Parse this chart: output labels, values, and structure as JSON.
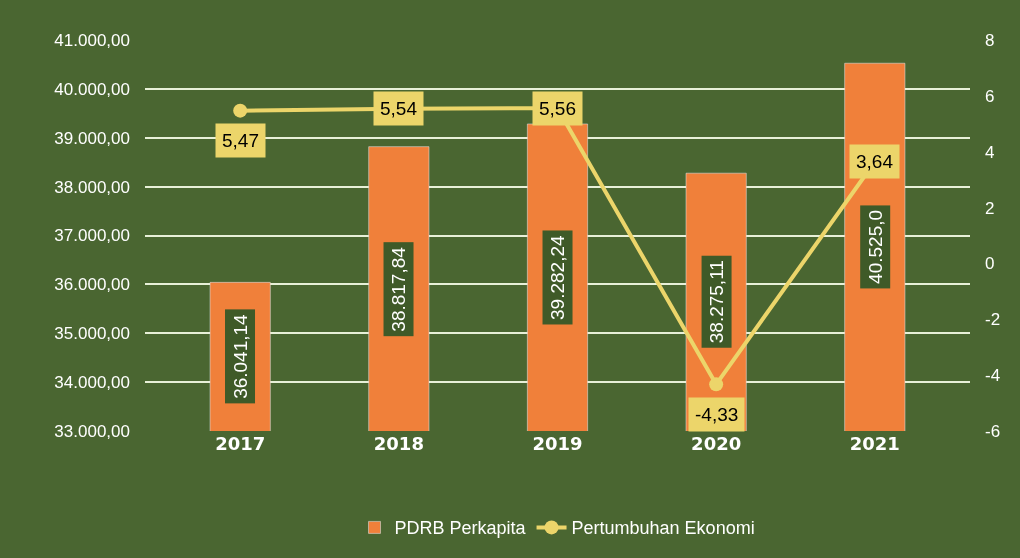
{
  "chart_data": {
    "type": "bar",
    "categories": [
      "2017",
      "2018",
      "2019",
      "2020",
      "2021"
    ],
    "series": [
      {
        "name": "PDRB Perkapita",
        "color": "#f0803a",
        "values": [
          36041.14,
          38817.84,
          39282.24,
          38275.11,
          40525.0
        ],
        "value_labels": [
          "36.041,14",
          "38.817,84",
          "39.282,24",
          "38.275,11",
          "40.525,0"
        ]
      },
      {
        "name": "Pertumbuhan Ekonomi",
        "type": "line",
        "axis": "y2",
        "color": "#ecd56a",
        "values": [
          5.47,
          5.54,
          5.56,
          -4.33,
          3.64
        ],
        "value_labels": [
          "5,47",
          "5,54",
          "5,56",
          "-4,33",
          "3,64"
        ]
      }
    ],
    "ylim": [
      33000,
      41000
    ],
    "yticks": [
      {
        "value": 33000,
        "label": "33.000,00"
      },
      {
        "value": 34000,
        "label": "34.000,00"
      },
      {
        "value": 35000,
        "label": "35.000,00"
      },
      {
        "value": 36000,
        "label": "36.000,00"
      },
      {
        "value": 37000,
        "label": "37.000,00"
      },
      {
        "value": 38000,
        "label": "38.000,00"
      },
      {
        "value": 39000,
        "label": "39.000,00"
      },
      {
        "value": 40000,
        "label": "40.000,00"
      },
      {
        "value": 41000,
        "label": "41.000,00"
      }
    ],
    "y2lim": [
      -6,
      8
    ],
    "y2ticks": [
      -6,
      -4,
      -2,
      0,
      2,
      4,
      6,
      8
    ],
    "grid": "y",
    "legend": "bottom",
    "marker": "circle",
    "line_style": "solid"
  }
}
